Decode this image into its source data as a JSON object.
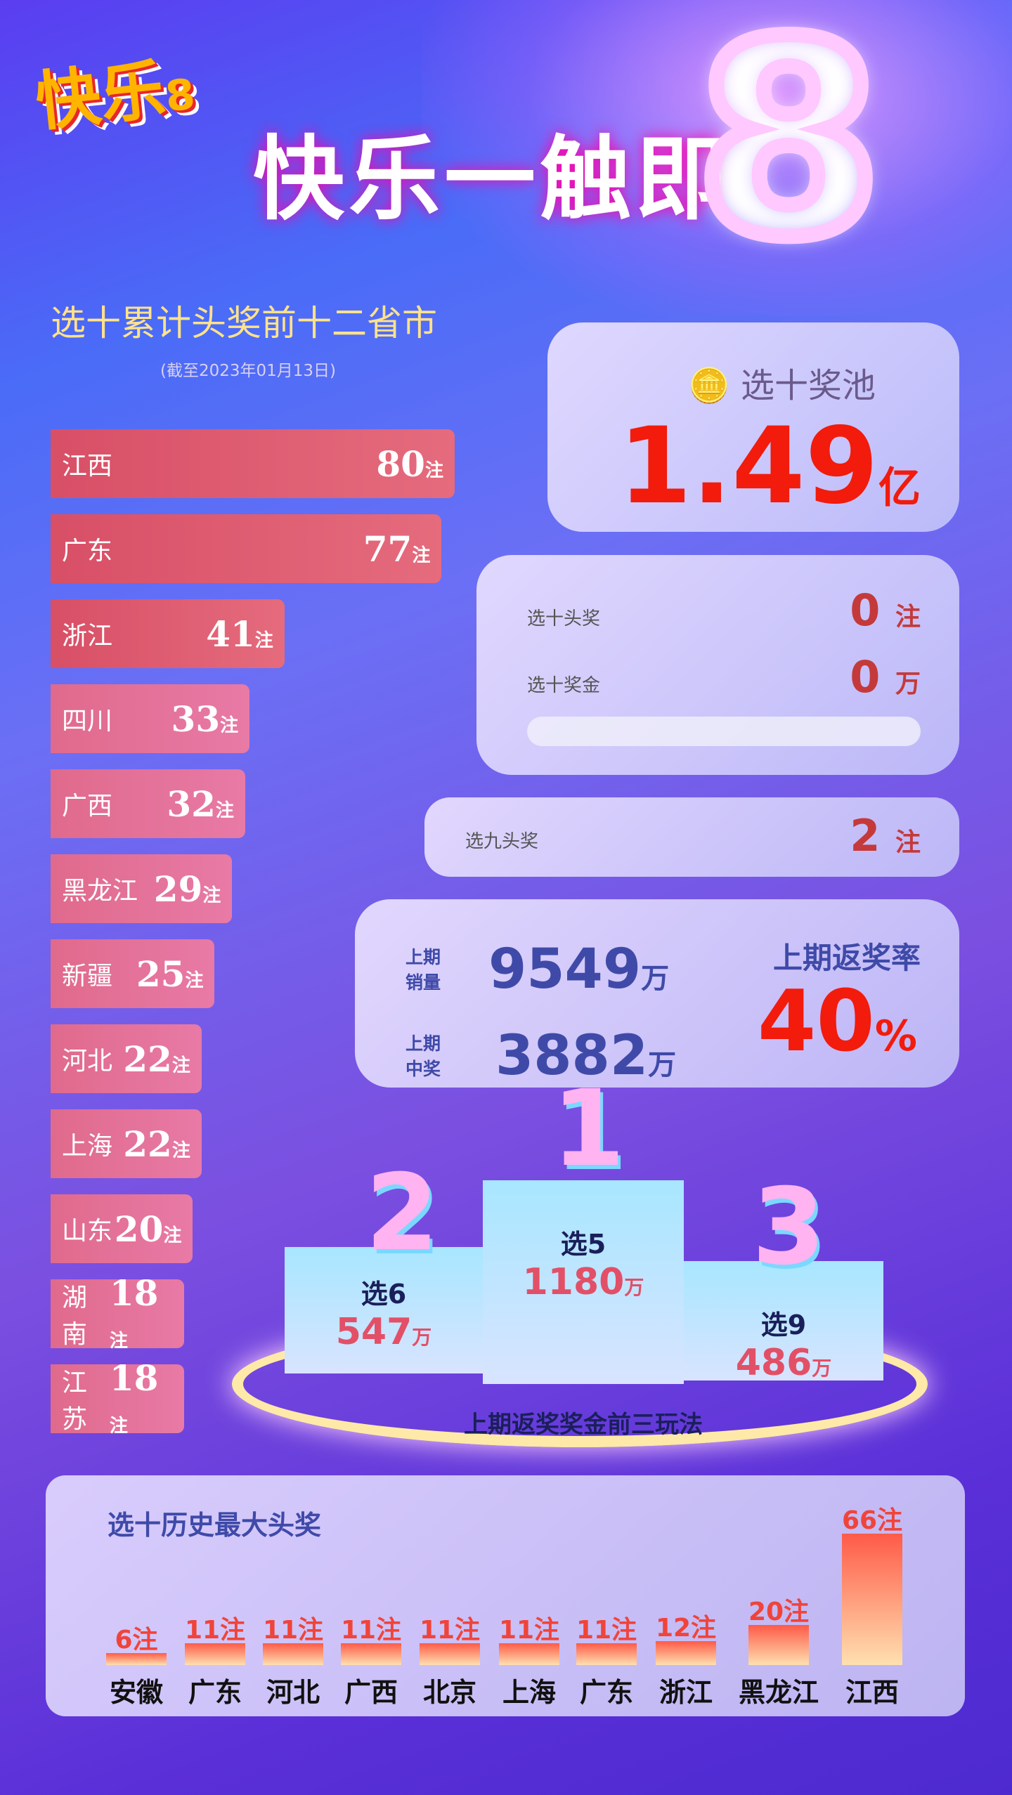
{
  "header": {
    "logo": "快乐8",
    "slogan": "快乐一触即",
    "slogan_digit": "8"
  },
  "ranking": {
    "title": "选十累计头奖前十二省市",
    "subtitle": "(截至2023年01月13日)",
    "unit": "注",
    "items": [
      {
        "name": "江西",
        "count": 80
      },
      {
        "name": "广东",
        "count": 77
      },
      {
        "name": "浙江",
        "count": 41
      },
      {
        "name": "四川",
        "count": 33
      },
      {
        "name": "广西",
        "count": 32
      },
      {
        "name": "黑龙江",
        "count": 29
      },
      {
        "name": "新疆",
        "count": 25
      },
      {
        "name": "河北",
        "count": 22
      },
      {
        "name": "上海",
        "count": 22
      },
      {
        "name": "山东",
        "count": 20
      },
      {
        "name": "湖南",
        "count": 18
      },
      {
        "name": "江苏",
        "count": 18
      }
    ]
  },
  "pool": {
    "label": "选十奖池",
    "value": "1.49",
    "unit": "亿"
  },
  "xuanshi": {
    "top_label": "选十头奖",
    "top_value": "0",
    "top_unit": "注",
    "prize_label": "选十奖金",
    "prize_value": "0",
    "prize_unit": "万"
  },
  "xuanjiu": {
    "label": "选九头奖",
    "value": "2",
    "unit": "注"
  },
  "last": {
    "sales_label1": "上期",
    "sales_label2": "销量",
    "sales": "9549",
    "win_label1": "上期",
    "win_label2": "中奖",
    "win": "3882",
    "unit": "万",
    "rate_label": "上期返奖率",
    "rate": "40",
    "rate_unit": "%"
  },
  "podium": {
    "caption": "上期返奖奖金前三玩法",
    "unit": "万",
    "items": [
      {
        "rank": "1",
        "name": "选5",
        "value": "1180"
      },
      {
        "rank": "2",
        "name": "选6",
        "value": "547"
      },
      {
        "rank": "3",
        "name": "选9",
        "value": "486"
      }
    ]
  },
  "chart_data": {
    "type": "bar",
    "title": "选十历史最大头奖",
    "unit": "注",
    "categories": [
      "安徽",
      "广东",
      "河北",
      "广西",
      "北京",
      "上海",
      "广东",
      "浙江",
      "黑龙江",
      "江西"
    ],
    "values": [
      6,
      11,
      11,
      11,
      11,
      11,
      11,
      12,
      20,
      66
    ],
    "labels": [
      "6注",
      "11注",
      "11注",
      "11注",
      "11注",
      "11注",
      "11注",
      "12注",
      "20注",
      "66注"
    ]
  },
  "colors": {
    "bar_top": "#e0546a",
    "bar_bottom": "#e7789e",
    "accent_red": "#f21b0c",
    "navy": "#3f4aa8"
  }
}
